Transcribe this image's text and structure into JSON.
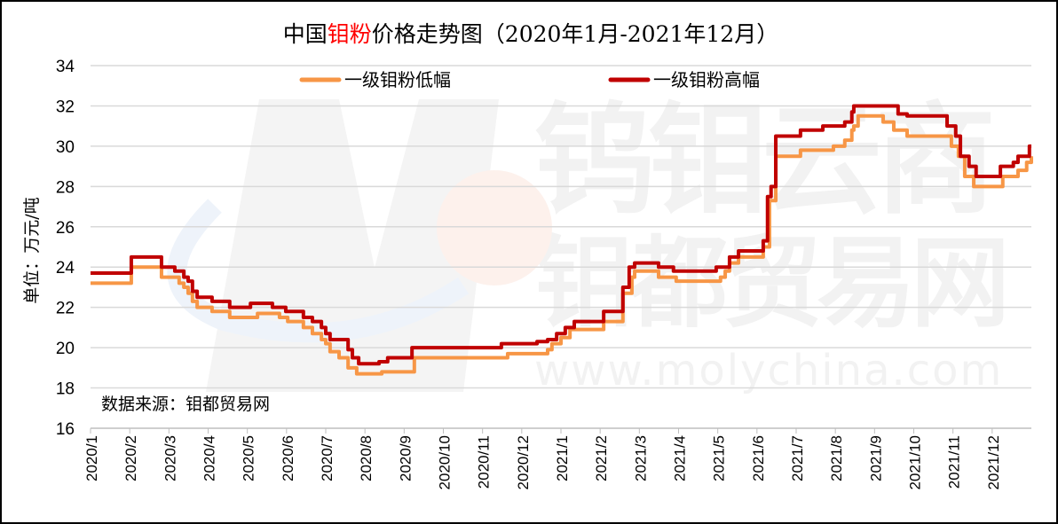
{
  "title": {
    "prefix": "中国",
    "highlight": "钼粉",
    "suffix": "价格走势图（2020年1月-2021年12月）"
  },
  "watermark": {
    "line1": "钨钼云商",
    "line2": "钼都贸易网",
    "url": "www.molychina.com"
  },
  "source_note": "数据来源：钼都贸易网",
  "colors": {
    "low": "#F79646",
    "high": "#C00000",
    "title_highlight": "#FF0000",
    "grid": "#D9D9D9"
  },
  "chart_data": {
    "type": "line",
    "title": "中国钼粉价格走势图（2020年1月-2021年12月）",
    "xlabel": "",
    "ylabel": "单位：万元/吨",
    "ylim": [
      16,
      34
    ],
    "yticks": [
      16,
      18,
      20,
      22,
      24,
      26,
      28,
      30,
      32,
      34
    ],
    "x_unit": "months since 2020/1",
    "xlim": [
      0,
      24
    ],
    "categories": [
      "2020/1",
      "2020/2",
      "2020/3",
      "2020/4",
      "2020/5",
      "2020/6",
      "2020/7",
      "2020/8",
      "2020/9",
      "2020/10",
      "2020/11",
      "2020/12",
      "2021/1",
      "2021/2",
      "2021/3",
      "2021/4",
      "2021/5",
      "2021/6",
      "2021/7",
      "2021/8",
      "2021/9",
      "2021/10",
      "2021/11",
      "2021/12"
    ],
    "grid": true,
    "legend_position": "top",
    "series": [
      {
        "name": "一级钼粉低幅",
        "color": "#F79646",
        "points": [
          [
            0,
            23.2
          ],
          [
            1.04,
            24.0
          ],
          [
            1.81,
            23.5
          ],
          [
            2.26,
            23.2
          ],
          [
            2.38,
            23.0
          ],
          [
            2.49,
            22.7
          ],
          [
            2.6,
            22.3
          ],
          [
            2.72,
            22.0
          ],
          [
            3.1,
            21.8
          ],
          [
            3.55,
            21.5
          ],
          [
            4.26,
            21.7
          ],
          [
            4.82,
            21.5
          ],
          [
            5.03,
            21.3
          ],
          [
            5.43,
            21.0
          ],
          [
            5.66,
            20.7
          ],
          [
            5.89,
            20.4
          ],
          [
            6.0,
            20.2
          ],
          [
            6.11,
            19.8
          ],
          [
            6.34,
            19.5
          ],
          [
            6.57,
            19.0
          ],
          [
            6.79,
            18.7
          ],
          [
            7.43,
            18.8
          ],
          [
            8.26,
            19.5
          ],
          [
            10.64,
            19.7
          ],
          [
            11.66,
            19.9
          ],
          [
            11.77,
            20.2
          ],
          [
            12.0,
            20.5
          ],
          [
            12.23,
            20.9
          ],
          [
            13.09,
            21.3
          ],
          [
            13.58,
            22.7
          ],
          [
            13.81,
            23.5
          ],
          [
            13.88,
            23.8
          ],
          [
            14.49,
            23.5
          ],
          [
            14.94,
            23.3
          ],
          [
            16.07,
            23.5
          ],
          [
            16.19,
            23.8
          ],
          [
            16.3,
            24.2
          ],
          [
            16.53,
            24.5
          ],
          [
            17.16,
            25.0
          ],
          [
            17.32,
            27.3
          ],
          [
            17.48,
            29.5
          ],
          [
            18.11,
            29.8
          ],
          [
            18.95,
            30.0
          ],
          [
            19.24,
            30.3
          ],
          [
            19.42,
            30.8
          ],
          [
            19.47,
            31.0
          ],
          [
            19.58,
            31.5
          ],
          [
            20.22,
            31.2
          ],
          [
            20.49,
            30.8
          ],
          [
            20.83,
            30.5
          ],
          [
            21.96,
            30.0
          ],
          [
            22.14,
            29.5
          ],
          [
            22.3,
            28.5
          ],
          [
            22.53,
            28.0
          ],
          [
            23.27,
            28.5
          ],
          [
            23.66,
            28.8
          ],
          [
            23.88,
            29.2
          ],
          [
            24.0,
            29.5
          ]
        ]
      },
      {
        "name": "一级钼粉高幅",
        "color": "#C00000",
        "points": [
          [
            0,
            23.7
          ],
          [
            1.04,
            24.5
          ],
          [
            1.81,
            24.0
          ],
          [
            2.15,
            23.8
          ],
          [
            2.38,
            23.5
          ],
          [
            2.49,
            23.3
          ],
          [
            2.6,
            22.8
          ],
          [
            2.72,
            22.5
          ],
          [
            3.1,
            22.3
          ],
          [
            3.55,
            22.0
          ],
          [
            4.08,
            22.2
          ],
          [
            4.64,
            22.0
          ],
          [
            4.98,
            21.8
          ],
          [
            5.43,
            21.5
          ],
          [
            5.66,
            21.3
          ],
          [
            5.89,
            21.0
          ],
          [
            6.0,
            20.7
          ],
          [
            6.11,
            20.4
          ],
          [
            6.57,
            19.9
          ],
          [
            6.68,
            19.5
          ],
          [
            6.84,
            19.2
          ],
          [
            7.36,
            19.3
          ],
          [
            7.58,
            19.5
          ],
          [
            8.2,
            20.0
          ],
          [
            10.48,
            20.2
          ],
          [
            11.39,
            20.3
          ],
          [
            11.66,
            20.4
          ],
          [
            11.89,
            20.7
          ],
          [
            12.11,
            21.0
          ],
          [
            12.34,
            21.3
          ],
          [
            13.09,
            21.8
          ],
          [
            13.58,
            23.0
          ],
          [
            13.74,
            24.0
          ],
          [
            13.88,
            24.2
          ],
          [
            14.49,
            24.0
          ],
          [
            14.87,
            23.8
          ],
          [
            15.96,
            24.0
          ],
          [
            16.3,
            24.5
          ],
          [
            16.53,
            24.8
          ],
          [
            17.16,
            25.3
          ],
          [
            17.27,
            27.5
          ],
          [
            17.36,
            28.0
          ],
          [
            17.48,
            30.5
          ],
          [
            18.11,
            30.8
          ],
          [
            18.68,
            31.0
          ],
          [
            19.24,
            31.2
          ],
          [
            19.42,
            31.7
          ],
          [
            19.47,
            32.0
          ],
          [
            20.6,
            31.6
          ],
          [
            20.83,
            31.5
          ],
          [
            21.85,
            31.0
          ],
          [
            22.07,
            30.5
          ],
          [
            22.19,
            29.5
          ],
          [
            22.41,
            29.0
          ],
          [
            22.59,
            28.5
          ],
          [
            23.21,
            29.0
          ],
          [
            23.54,
            29.2
          ],
          [
            23.66,
            29.5
          ],
          [
            23.95,
            30.0
          ],
          [
            24.0,
            30.0
          ]
        ]
      }
    ]
  }
}
